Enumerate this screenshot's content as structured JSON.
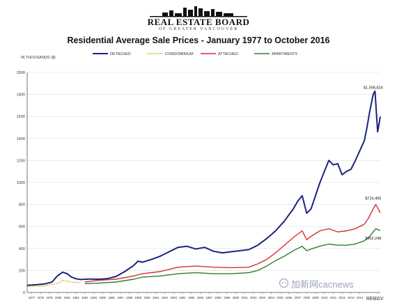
{
  "header": {
    "logo_name": "REAL ESTATE BOARD",
    "logo_sub": "OF GREATER VANCOUVER"
  },
  "watermark": "加新网cacnews",
  "credit": "REBGV",
  "colors": {
    "detached": "#1a237e",
    "condominium": "#d4b600",
    "attached": "#d32f2f",
    "apartments": "#2e7d32",
    "grid": "#dddddd",
    "axis": "#555555"
  },
  "chart_data": {
    "type": "line",
    "title": "Residential Average Sale Prices  -  January 1977 to October 2016",
    "ylabel": "IN THOUSANDS ($)",
    "xlabel": "",
    "ylim": [
      0,
      2000
    ],
    "yticks": [
      0,
      200,
      400,
      600,
      800,
      1000,
      1200,
      1400,
      1600,
      1800,
      2000
    ],
    "xlim": [
      1977,
      2016.8
    ],
    "xticks": [
      "1977",
      "1978",
      "1979",
      "1980",
      "1981",
      "1982",
      "1983",
      "1984",
      "1985",
      "1986",
      "1987",
      "1988",
      "1989",
      "1990",
      "1991",
      "1992",
      "1993",
      "1994",
      "1995",
      "1996",
      "1997",
      "1998",
      "1999",
      "2000",
      "2001",
      "2002",
      "2003",
      "2004",
      "2005",
      "2006",
      "2007",
      "2008",
      "2009",
      "2010",
      "2011",
      "2012",
      "2013",
      "2014"
    ],
    "grid": true,
    "legend_position": "top",
    "annotations": [
      {
        "text": "$1,598,824",
        "x": 2016.0,
        "y": 1850
      },
      {
        "text": "$724,406",
        "x": 2016.0,
        "y": 845
      },
      {
        "text": "$562,248",
        "x": 2016.0,
        "y": 480
      }
    ],
    "series": [
      {
        "name": "DETACHED",
        "style": "solid",
        "x": [
          1977,
          1978,
          1979,
          1979.8,
          1980.4,
          1981,
          1981.5,
          1982,
          1982.5,
          1983,
          1984,
          1985,
          1986,
          1987,
          1988,
          1989,
          1989.5,
          1990,
          1991,
          1992,
          1993,
          1994,
          1995,
          1996,
          1997,
          1998,
          1999,
          2000,
          2001,
          2002,
          2003,
          2004,
          2005,
          2006,
          2007,
          2007.5,
          2008,
          2008.5,
          2009,
          2009.5,
          2010,
          2010.5,
          2011,
          2011.5,
          2012,
          2012.5,
          2013,
          2013.5,
          2014,
          2014.5,
          2015,
          2015.3,
          2015.6,
          2016.0,
          2016.2,
          2016.5,
          2016.8
        ],
        "y": [
          65,
          70,
          78,
          95,
          150,
          185,
          170,
          140,
          125,
          118,
          122,
          120,
          125,
          145,
          190,
          245,
          285,
          275,
          300,
          330,
          370,
          410,
          420,
          395,
          410,
          375,
          360,
          370,
          380,
          390,
          430,
          490,
          560,
          650,
          760,
          830,
          880,
          720,
          760,
          880,
          1000,
          1100,
          1200,
          1160,
          1170,
          1070,
          1100,
          1120,
          1200,
          1290,
          1380,
          1500,
          1640,
          1800,
          1830,
          1460,
          1599
        ]
      },
      {
        "name": "CONDOMINIUM",
        "style": "dashed",
        "x": [
          1977,
          1979,
          1980.5,
          1981,
          1982,
          1983
        ],
        "y": [
          55,
          60,
          85,
          110,
          95,
          90
        ]
      },
      {
        "name": "ATTACHED",
        "style": "solid",
        "x": [
          1983.5,
          1985,
          1987,
          1989,
          1990,
          1992,
          1994,
          1996,
          1998,
          2000,
          2002,
          2003,
          2004,
          2005,
          2006,
          2007,
          2008,
          2008.5,
          2009,
          2010,
          2011,
          2012,
          2013,
          2014,
          2015,
          2015.5,
          2016.0,
          2016.3,
          2016.8
        ],
        "y": [
          95,
          110,
          120,
          150,
          170,
          190,
          230,
          240,
          230,
          225,
          230,
          260,
          300,
          360,
          430,
          500,
          560,
          480,
          510,
          560,
          580,
          550,
          560,
          580,
          620,
          680,
          760,
          800,
          724
        ]
      },
      {
        "name": "APARTMENTS",
        "style": "solid",
        "x": [
          1983.5,
          1985,
          1987,
          1989,
          1990,
          1992,
          1994,
          1996,
          1998,
          2000,
          2002,
          2003,
          2004,
          2005,
          2006,
          2007,
          2008,
          2008.5,
          2009,
          2010,
          2011,
          2012,
          2013,
          2014,
          2015,
          2015.5,
          2016.0,
          2016.3,
          2016.8
        ],
        "y": [
          80,
          85,
          95,
          120,
          140,
          150,
          170,
          180,
          170,
          170,
          180,
          200,
          240,
          290,
          330,
          380,
          420,
          380,
          395,
          420,
          440,
          430,
          430,
          440,
          470,
          500,
          550,
          580,
          562
        ]
      }
    ]
  }
}
